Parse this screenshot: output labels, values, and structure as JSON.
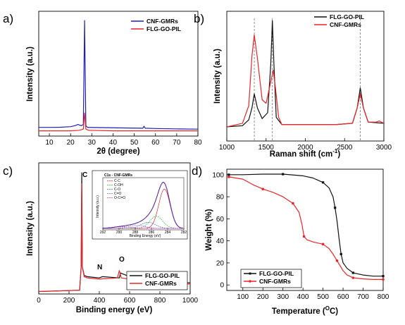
{
  "colors": {
    "blue": "#1f1fb4",
    "red": "#e8262a",
    "black": "#111111",
    "grid": "#777777"
  },
  "chart_data": [
    {
      "type": "line",
      "panel_label": "a)",
      "xlabel": "2θ (degree)",
      "ylabel": "Intensity (a.u.)",
      "xlim": [
        5,
        80
      ],
      "xticks": [
        "10",
        "20",
        "30",
        "40",
        "50",
        "60",
        "70",
        "80"
      ],
      "legend": {
        "position": "top-right"
      },
      "series": [
        {
          "name": "CNF-GMRs",
          "color": "#1f1fb4",
          "x": [
            5,
            10,
            15,
            20,
            22,
            23.5,
            25,
            26,
            26.6,
            27.2,
            28,
            35,
            45,
            54,
            54.6,
            55.2,
            60,
            70,
            80
          ],
          "y": [
            7.5,
            7.5,
            7.6,
            8.1,
            9,
            10,
            9,
            10,
            100,
            9,
            7.5,
            7.3,
            7,
            6.8,
            8.5,
            6.8,
            6.5,
            6.2,
            6
          ]
        },
        {
          "name": "FLG-GO-PIL",
          "color": "#e8262a",
          "x": [
            5,
            20,
            24,
            26,
            26.6,
            27.2,
            28.5,
            40,
            60,
            80
          ],
          "y": [
            4.5,
            4.5,
            5,
            6,
            20,
            6,
            5,
            4.5,
            4.5,
            4.5
          ]
        }
      ]
    },
    {
      "type": "line",
      "panel_label": "b)",
      "xlabel": "Raman shift (cm-1)",
      "xlabel_parts": [
        "Raman shift (cm",
        "-1",
        ")"
      ],
      "ylabel": "Intensity (a.u.)",
      "xlim": [
        1000,
        3000
      ],
      "xticks": [
        "1000",
        "1500",
        "2000",
        "2500",
        "3000"
      ],
      "reference_lines_x": [
        1350,
        1580,
        2700
      ],
      "legend": {
        "position": "top-right"
      },
      "series": [
        {
          "name": "FLG-GO-PIL",
          "color": "#111111",
          "x": [
            1000,
            1200,
            1280,
            1320,
            1350,
            1390,
            1450,
            1520,
            1560,
            1580,
            1600,
            1630,
            1700,
            2000,
            2400,
            2600,
            2660,
            2700,
            2740,
            2800,
            3000
          ],
          "y": [
            2,
            3,
            8,
            18,
            30,
            18,
            9,
            14,
            55,
            92,
            55,
            10,
            4,
            4,
            4,
            5,
            18,
            35,
            18,
            6,
            5
          ]
        },
        {
          "name": "CNF-GMRs",
          "color": "#e8262a",
          "x": [
            1000,
            1200,
            1280,
            1320,
            1350,
            1390,
            1450,
            1500,
            1560,
            1590,
            1620,
            1660,
            1700,
            2000,
            2400,
            2600,
            2660,
            2700,
            2740,
            2800,
            2900,
            2940,
            3000
          ],
          "y": [
            2,
            5,
            20,
            62,
            80,
            60,
            25,
            22,
            40,
            50,
            35,
            10,
            4,
            4,
            4,
            5,
            18,
            30,
            18,
            6,
            6,
            7,
            5
          ]
        }
      ]
    },
    {
      "type": "line",
      "panel_label": "c)",
      "xlabel": "Binding energy (eV)",
      "ylabel": "Intensity (a.u.)",
      "xlim": [
        0,
        1000
      ],
      "xticks": [
        "0",
        "200",
        "400",
        "600",
        "800",
        "1000"
      ],
      "annotations": [
        "C",
        "N",
        "O"
      ],
      "legend": {
        "position": "bottom-right"
      },
      "series": [
        {
          "name": "FLG-GO-PIL",
          "color": "#111111",
          "x": [
            0,
            270,
            280,
            284,
            288,
            300,
            320,
            400,
            420,
            532,
            540,
            600,
            700,
            800,
            900,
            1000
          ],
          "y": [
            0,
            1,
            20,
            96,
            20,
            13,
            12,
            11,
            12,
            11,
            15,
            12,
            11,
            9,
            8,
            7
          ]
        },
        {
          "name": "CNF-GMRs",
          "color": "#e8262a",
          "x": [
            0,
            270,
            280,
            284,
            288,
            300,
            320,
            400,
            520,
            532,
            545,
            600,
            700,
            800,
            900,
            1000
          ],
          "y": [
            0,
            1,
            20,
            87,
            20,
            12,
            11,
            10,
            11,
            17,
            11,
            10,
            9,
            8,
            7,
            6
          ]
        }
      ],
      "inset": {
        "title": "C1s - CNF-GMRs",
        "xlabel": "Binding Energy (eV)",
        "ylabel": "Intensity (a.u.)",
        "xticks": [
          "292",
          "290",
          "288",
          "286",
          "284",
          "282"
        ],
        "legend": [
          "C-C",
          "C-OH",
          "C-O",
          "C=O",
          "O-C=O"
        ],
        "component_colors": [
          "#e8262a",
          "#2db34a",
          "#3a78c2",
          "#9b59b6",
          "#d63aa8"
        ]
      }
    },
    {
      "type": "line",
      "panel_label": "d)",
      "xlabel": "Temperature (°C)",
      "xlabel_parts": [
        "Temperature (",
        "O",
        "C)"
      ],
      "ylabel": "Weight (%)",
      "xlim": [
        20,
        800
      ],
      "ylim": [
        -5,
        105
      ],
      "xticks": [
        "100",
        "200",
        "300",
        "400",
        "500",
        "600",
        "700",
        "800"
      ],
      "yticks": [
        "0",
        "20",
        "40",
        "60",
        "80",
        "100"
      ],
      "legend": {
        "position": "bottom-left"
      },
      "series": [
        {
          "name": "FLG-GO-PIL",
          "color": "#111111",
          "x": [
            30,
            100,
            200,
            300,
            400,
            450,
            500,
            530,
            550,
            560,
            570,
            580,
            590,
            600,
            620,
            650,
            700,
            750,
            800
          ],
          "y": [
            100,
            100,
            100.5,
            100.5,
            99,
            97,
            93,
            88,
            80,
            70,
            58,
            42,
            28,
            20,
            15,
            11,
            9,
            8,
            8
          ]
        },
        {
          "name": "CNF-GMRs",
          "color": "#e8262a",
          "x": [
            30,
            100,
            150,
            200,
            250,
            300,
            350,
            380,
            395,
            405,
            420,
            450,
            500,
            530,
            550,
            570,
            600,
            620,
            650,
            700,
            750,
            800
          ],
          "y": [
            98,
            96,
            91,
            87,
            84,
            80,
            74,
            66,
            55,
            44,
            41,
            39,
            37,
            33,
            28,
            22,
            13,
            9,
            6.5,
            5.5,
            5,
            5
          ]
        }
      ]
    }
  ]
}
